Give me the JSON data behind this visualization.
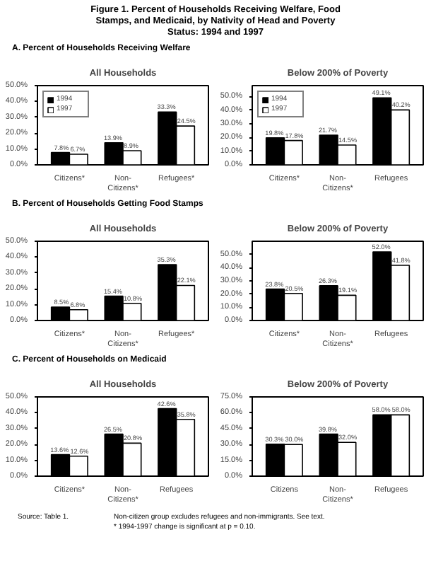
{
  "chart_data": [
    {
      "type": "bar",
      "title": "All Households",
      "subtitle": "A.  Percent of Households Receiving Welfare",
      "annotations": [
        "Figure 1.  Percent of Households Receiving Welfare, Food Stamps, and Medicaid, by Nativity of Head and Poverty Status:  1994 and 1997"
      ],
      "categories": [
        "Citizens*",
        "Non-Citizens*",
        "Refugees*"
      ],
      "legend": "top left",
      "series": [
        {
          "name": "1994",
          "color": "#000000",
          "values": [
            7.8,
            13.9,
            33.3
          ],
          "value_labels": [
            "7.8%",
            "13.9%",
            "33.3%"
          ]
        },
        {
          "name": "1997",
          "color": "#ffffff",
          "values": [
            6.7,
            8.9,
            24.5
          ],
          "value_labels": [
            "6.7%",
            "8.9%",
            "24.5%"
          ]
        }
      ],
      "ylim": [
        0,
        50
      ],
      "yticks": [
        {
          "value": 0,
          "label": "0.0%"
        },
        {
          "value": 10,
          "label": "10.0%"
        },
        {
          "value": 20,
          "label": "20.0%"
        },
        {
          "value": 30,
          "label": "30.0%"
        },
        {
          "value": 40,
          "label": "40.0%"
        },
        {
          "value": 50,
          "label": "50.0%"
        }
      ]
    },
    {
      "type": "bar",
      "title": "Below 200% of Poverty",
      "categories": [
        "Citizens*",
        "Non-Citizens*",
        "Refugees"
      ],
      "legend": "top left",
      "series": [
        {
          "name": "1994",
          "color": "#000000",
          "values": [
            19.8,
            21.7,
            49.1
          ],
          "value_labels": [
            "19.8%",
            "21.7%",
            "49.1%"
          ]
        },
        {
          "name": "1997",
          "color": "#ffffff",
          "values": [
            17.8,
            14.5,
            40.2
          ],
          "value_labels": [
            "17.8%",
            "14.5%",
            "40.2%"
          ]
        }
      ],
      "ylim": [
        0,
        58
      ],
      "yticks": [
        {
          "value": 0,
          "label": "0.0%"
        },
        {
          "value": 10,
          "label": "10.0%"
        },
        {
          "value": 20,
          "label": "20.0%"
        },
        {
          "value": 30,
          "label": "30.0%"
        },
        {
          "value": 40,
          "label": "40.0%"
        },
        {
          "value": 50,
          "label": "50.0%"
        }
      ]
    },
    {
      "type": "bar",
      "title": "All Households",
      "subtitle": "B.  Percent of Households Getting Food Stamps",
      "categories": [
        "Citizens*",
        "Non-Citizens*",
        "Refugees*"
      ],
      "series": [
        {
          "color": "#000000",
          "values": [
            8.5,
            15.4,
            35.3
          ],
          "value_labels": [
            "8.5%",
            "15.4%",
            "35.3%"
          ]
        },
        {
          "color": "#ffffff",
          "values": [
            6.8,
            10.8,
            22.1
          ],
          "value_labels": [
            "6.8%",
            "10.8%",
            "22.1%"
          ]
        }
      ],
      "ylim": [
        0,
        50
      ],
      "yticks": [
        {
          "value": 0,
          "label": "0.0%"
        },
        {
          "value": 10,
          "label": "10.0%"
        },
        {
          "value": 20,
          "label": "20.0%"
        },
        {
          "value": 30,
          "label": "30.0%"
        },
        {
          "value": 40,
          "label": "40.0%"
        },
        {
          "value": 50,
          "label": "50.0%"
        }
      ]
    },
    {
      "type": "bar",
      "title": "Below 200% of Poverty",
      "categories": [
        "Citizens*",
        "Non-Citizens*",
        "Refugees"
      ],
      "series": [
        {
          "color": "#000000",
          "values": [
            23.8,
            26.3,
            52.0
          ],
          "value_labels": [
            "23.8%",
            "26.3%",
            "52.0%"
          ]
        },
        {
          "color": "#ffffff",
          "values": [
            20.5,
            19.1,
            41.8
          ],
          "value_labels": [
            "20.5%",
            "19.1%",
            "41.8%"
          ]
        }
      ],
      "ylim": [
        0,
        60
      ],
      "yticks": [
        {
          "value": 0,
          "label": "0.0%"
        },
        {
          "value": 10,
          "label": "10.0%"
        },
        {
          "value": 20,
          "label": "20.0%"
        },
        {
          "value": 30,
          "label": "30.0%"
        },
        {
          "value": 40,
          "label": "40.0%"
        },
        {
          "value": 50,
          "label": "50.0%"
        }
      ]
    },
    {
      "type": "bar",
      "title": "All Households",
      "subtitle": "C.  Percent of Households on Medicaid",
      "categories": [
        "Citizens*",
        "Non-Citizens*",
        "Refugees"
      ],
      "series": [
        {
          "color": "#000000",
          "values": [
            13.6,
            26.5,
            42.6
          ],
          "value_labels": [
            "13.6%",
            "26.5%",
            "42.6%"
          ]
        },
        {
          "color": "#ffffff",
          "values": [
            12.6,
            20.8,
            35.8
          ],
          "value_labels": [
            "12.6%",
            "20.8%",
            "35.8%"
          ]
        }
      ],
      "ylim": [
        0,
        50
      ],
      "yticks": [
        {
          "value": 0,
          "label": "0.0%"
        },
        {
          "value": 10,
          "label": "10.0%"
        },
        {
          "value": 20,
          "label": "20.0%"
        },
        {
          "value": 30,
          "label": "30.0%"
        },
        {
          "value": 40,
          "label": "40.0%"
        },
        {
          "value": 50,
          "label": "50.0%"
        }
      ]
    },
    {
      "type": "bar",
      "title": "Below 200% of Poverty",
      "categories": [
        "Citizens",
        "Non-Citizens*",
        "Refugees"
      ],
      "annotations": [
        "Source: Table 1.",
        "Non-citizen group excludes refugees and non-immigrants.  See text.",
        "* 1994-1997 change is significant at p = 0.10."
      ],
      "series": [
        {
          "color": "#000000",
          "values": [
            30.3,
            39.8,
            58.0
          ],
          "value_labels": [
            "30.3%",
            "39.8%",
            "58.0%"
          ]
        },
        {
          "color": "#ffffff",
          "values": [
            30.0,
            32.0,
            58.0
          ],
          "value_labels": [
            "30.0%",
            "32.0%",
            "58.0%"
          ]
        }
      ],
      "ylim": [
        0,
        75
      ],
      "yticks": [
        {
          "value": 0,
          "label": "0.0%"
        },
        {
          "value": 15,
          "label": "15.0%"
        },
        {
          "value": 30,
          "label": "30.0%"
        },
        {
          "value": 45,
          "label": "45.0%"
        },
        {
          "value": 60,
          "label": "60.0%"
        },
        {
          "value": 75,
          "label": "75.0%"
        }
      ]
    }
  ]
}
